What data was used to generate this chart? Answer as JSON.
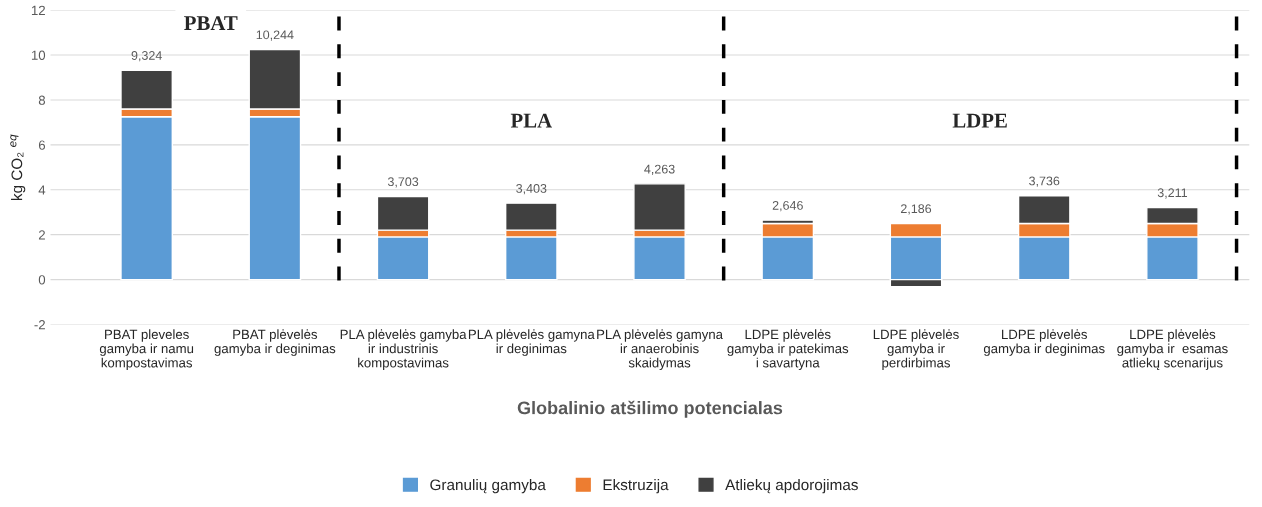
{
  "chart_data": {
    "type": "bar",
    "stacked": true,
    "xlabel": "Globalinio atšilimo potencialas",
    "ylabel": "kg CO₂ $^{eq}$",
    "categories": [
      "PBAT pleveles\ngamyba ir namu\nkompostavimas",
      "PBAT plėvelės\ngamyba ir deginimas",
      "PLA plėvelės gamyba\nir industrinis\nkompostavimas",
      "PLA plėvelės gamyna\nir deginimas",
      "PLA plėvelės gamyna\nir anaerobinis\nskaidymas",
      "LDPE plėvelės\ngamyba ir patekimas\ni savartyna",
      "LDPE plėvelės\ngamyba ir\nperdirbimas",
      "LDPE plėvelės\ngamyba ir deginimas",
      "LDPE plėvelės\ngamyba ir  esamas\natliekų scenarijus"
    ],
    "series": [
      {
        "name": "Granulių gamyba",
        "color": "#5b9bd5",
        "values": [
          7.25,
          7.25,
          1.9,
          1.9,
          1.9,
          1.9,
          1.9,
          1.9,
          1.9
        ]
      },
      {
        "name": "Ekstruzija",
        "color": "#ed7d31",
        "values": [
          0.35,
          0.35,
          0.3,
          0.3,
          0.3,
          0.6,
          0.6,
          0.6,
          0.6
        ]
      },
      {
        "name": "Atliekų apdorojimas",
        "color": "#404040",
        "values": [
          1.724,
          2.644,
          1.503,
          1.203,
          2.063,
          0.146,
          -0.314,
          1.236,
          0.711
        ]
      }
    ],
    "totals": [
      "9,324",
      "10,244",
      "3,703",
      "3,403",
      "4,263",
      "2,646",
      "2,186",
      "3,736",
      "3,211"
    ],
    "ylim": [
      -2,
      12
    ],
    "yticks": [
      -2,
      0,
      2,
      4,
      6,
      8,
      10,
      12
    ],
    "grid": "y",
    "legend": "bottom",
    "annotations": [
      "PBAT",
      "PLA",
      "LDPE"
    ]
  }
}
